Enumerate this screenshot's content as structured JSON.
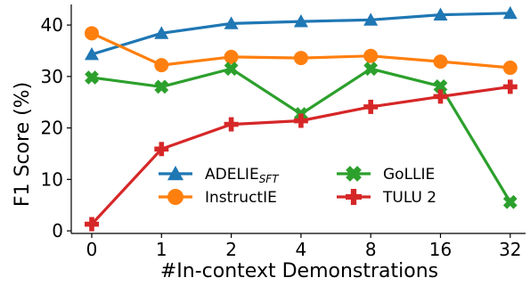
{
  "chart_data": {
    "type": "line",
    "xlabel": "#In-context Demonstrations",
    "ylabel": "F1 Score (%)",
    "categories": [
      "0",
      "1",
      "2",
      "4",
      "8",
      "16",
      "32"
    ],
    "yticks": [
      0,
      10,
      20,
      30,
      40
    ],
    "ylim": [
      -0.5,
      44
    ],
    "grid": false,
    "legend_position": "center-bottom",
    "series": [
      {
        "name": "ADELIE",
        "name_sub": "SFT",
        "color": "#1f77b4",
        "marker": "triangle",
        "values": [
          34.3,
          38.4,
          40.3,
          40.7,
          41.0,
          42.0,
          42.3
        ]
      },
      {
        "name": "InstructIE",
        "name_sub": "",
        "color": "#ff7f0e",
        "marker": "circle",
        "values": [
          38.4,
          32.2,
          33.8,
          33.6,
          34.0,
          32.9,
          31.7
        ]
      },
      {
        "name": "GoLLIE",
        "name_sub": "",
        "color": "#2ca02c",
        "marker": "x",
        "values": [
          29.8,
          28.0,
          31.5,
          22.7,
          31.5,
          28.1,
          5.6
        ]
      },
      {
        "name": "TULU 2",
        "name_sub": "",
        "color": "#d62728",
        "marker": "plus",
        "values": [
          1.3,
          15.9,
          20.7,
          21.4,
          24.1,
          26.1,
          28.0
        ]
      }
    ]
  }
}
